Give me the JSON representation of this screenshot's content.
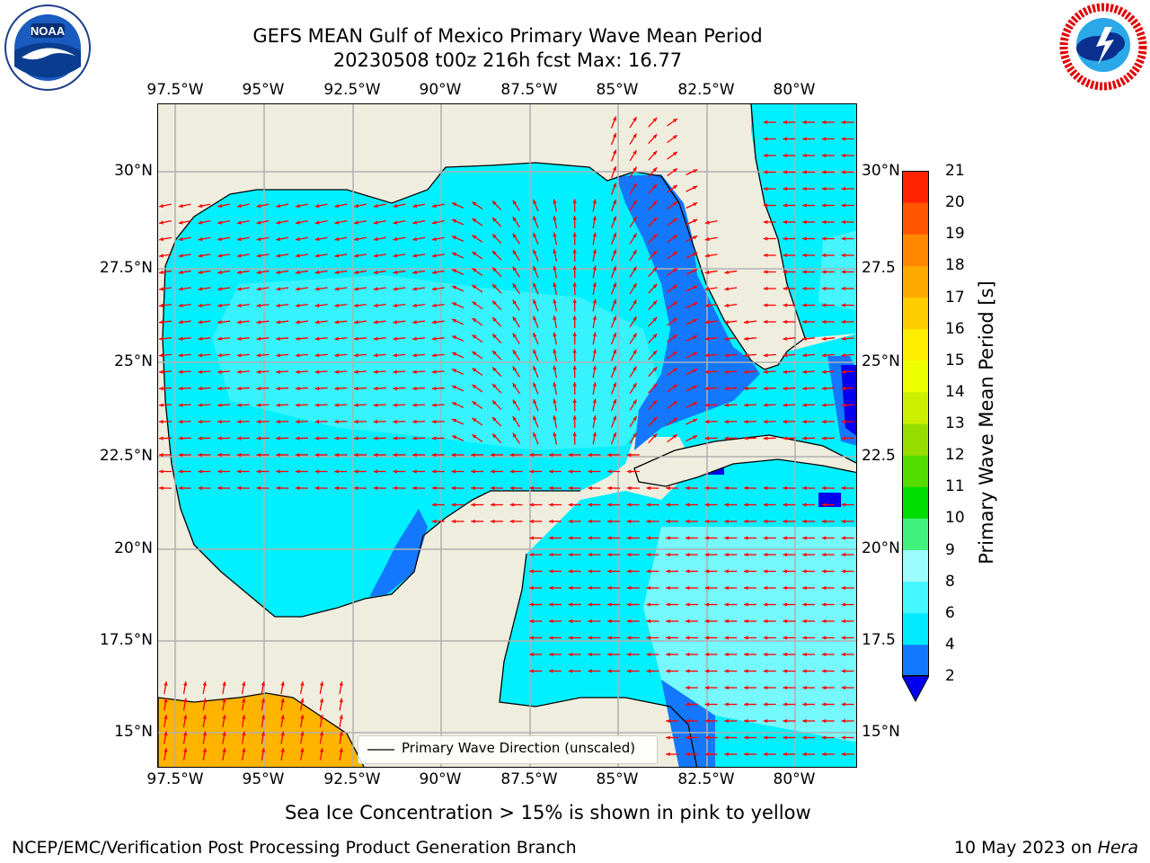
{
  "header": {
    "title_line1": "GEFS MEAN Gulf of Mexico Primary Wave Mean Period",
    "title_line2": "20230508 t00z 216h fcst   Max: 16.77"
  },
  "logos": {
    "left": "noaa-logo",
    "right": "nws-logo"
  },
  "map": {
    "lon_labels": [
      "97.5°W",
      "95°W",
      "92.5°W",
      "90°W",
      "87.5°W",
      "85°W",
      "82.5°W",
      "80°W"
    ],
    "lat_labels_left": [
      "30°N",
      "27.5°N",
      "25°N",
      "22.5°N",
      "20°N",
      "17.5°N",
      "15°N"
    ],
    "lat_labels_right": [
      "30°N",
      "27.5",
      "25°N",
      "22.5",
      "20°N",
      "17.5",
      "15°N"
    ],
    "land_color": "#efedde",
    "arrow_color": "#ff0000",
    "legend_text": "Primary Wave Direction (unscaled)"
  },
  "colorbar": {
    "label": "Primary Wave Mean Period [s]",
    "ticks": [
      "2",
      "4",
      "6",
      "8",
      "9",
      "10",
      "11",
      "12",
      "13",
      "14",
      "15",
      "16",
      "17",
      "18",
      "19",
      "20",
      "21"
    ],
    "colors": [
      "#1478ff",
      "#00eaff",
      "#44f6ff",
      "#9dfcfc",
      "#42f27c",
      "#00dd00",
      "#55dd00",
      "#99dd00",
      "#ccf000",
      "#eeff00",
      "#ffee00",
      "#ffcc00",
      "#ffaa00",
      "#ff8800",
      "#ff5500",
      "#ff2200",
      "#ff0000"
    ],
    "under_color": "#0000ee"
  },
  "footer": {
    "note": "Sea Ice Concentration > 15% is shown in pink to yellow",
    "credit": "NCEP/EMC/Verification Post Processing Product Generation Branch",
    "date": "10 May 2023 on ",
    "host": "Hera"
  }
}
